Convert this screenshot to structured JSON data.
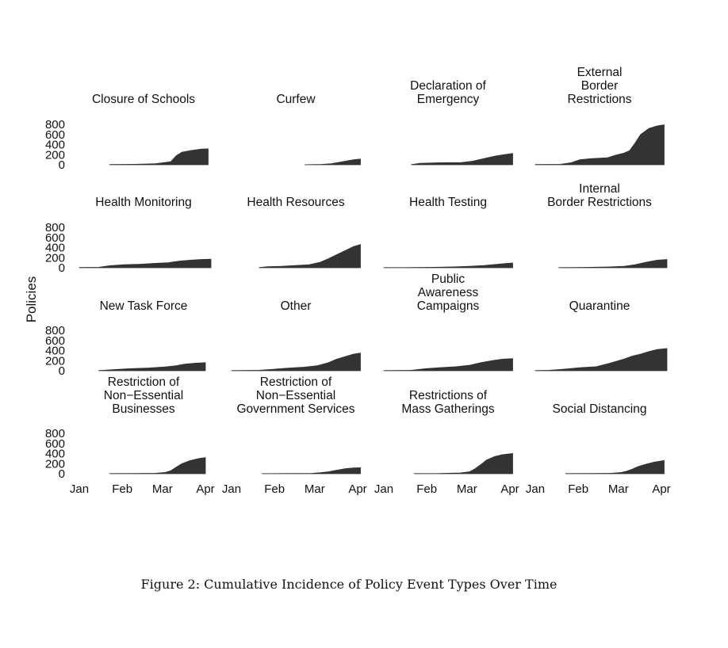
{
  "caption": "Figure 2: Cumulative Incidence of Policy Event Types Over Time",
  "chart_data": {
    "type": "area",
    "ylabel": "Policies",
    "ylim": [
      0,
      800
    ],
    "yticks": [
      0,
      200,
      400,
      600,
      800
    ],
    "x_ticks": [
      "Jan",
      "Feb",
      "Mar",
      "Apr"
    ],
    "x_tick_days": [
      0,
      31,
      60,
      91
    ],
    "x_domain_days": [
      0,
      95
    ],
    "fill_color": "#333333",
    "panels": [
      {
        "title": [
          "Closure of Schools"
        ],
        "start": 22,
        "values": [
          [
            22,
            5
          ],
          [
            40,
            10
          ],
          [
            55,
            20
          ],
          [
            66,
            60
          ],
          [
            70,
            180
          ],
          [
            74,
            250
          ],
          [
            80,
            280
          ],
          [
            88,
            310
          ],
          [
            93,
            315
          ]
        ]
      },
      {
        "title": [
          "Curfew"
        ],
        "start": 53,
        "values": [
          [
            53,
            2
          ],
          [
            65,
            8
          ],
          [
            72,
            20
          ],
          [
            80,
            60
          ],
          [
            88,
            100
          ],
          [
            93,
            115
          ]
        ]
      },
      {
        "title": [
          "Declaration of",
          "Emergency"
        ],
        "start": 20,
        "values": [
          [
            20,
            5
          ],
          [
            26,
            30
          ],
          [
            40,
            40
          ],
          [
            56,
            45
          ],
          [
            64,
            70
          ],
          [
            72,
            120
          ],
          [
            80,
            170
          ],
          [
            88,
            205
          ],
          [
            93,
            225
          ]
        ]
      },
      {
        "title": [
          "External",
          "Border",
          "Restrictions"
        ],
        "start": 0,
        "values": [
          [
            0,
            5
          ],
          [
            18,
            10
          ],
          [
            26,
            40
          ],
          [
            32,
            100
          ],
          [
            40,
            120
          ],
          [
            52,
            140
          ],
          [
            58,
            190
          ],
          [
            64,
            230
          ],
          [
            68,
            280
          ],
          [
            72,
            430
          ],
          [
            76,
            600
          ],
          [
            82,
            720
          ],
          [
            88,
            770
          ],
          [
            93,
            790
          ]
        ]
      },
      {
        "title": [
          "Health Monitoring"
        ],
        "start": 0,
        "values": [
          [
            0,
            5
          ],
          [
            14,
            10
          ],
          [
            22,
            40
          ],
          [
            32,
            60
          ],
          [
            44,
            70
          ],
          [
            56,
            90
          ],
          [
            64,
            100
          ],
          [
            72,
            130
          ],
          [
            80,
            150
          ],
          [
            88,
            165
          ],
          [
            95,
            170
          ]
        ]
      },
      {
        "title": [
          "Health Resources"
        ],
        "start": 20,
        "values": [
          [
            20,
            5
          ],
          [
            26,
            20
          ],
          [
            36,
            30
          ],
          [
            46,
            45
          ],
          [
            56,
            60
          ],
          [
            64,
            110
          ],
          [
            70,
            180
          ],
          [
            76,
            260
          ],
          [
            82,
            340
          ],
          [
            88,
            420
          ],
          [
            93,
            460
          ]
        ]
      },
      {
        "title": [
          "Health Testing"
        ],
        "start": 0,
        "values": [
          [
            0,
            3
          ],
          [
            20,
            5
          ],
          [
            36,
            10
          ],
          [
            50,
            18
          ],
          [
            62,
            30
          ],
          [
            72,
            45
          ],
          [
            80,
            65
          ],
          [
            88,
            85
          ],
          [
            93,
            95
          ]
        ]
      },
      {
        "title": [
          "Internal",
          "Border Restrictions"
        ],
        "start": 17,
        "values": [
          [
            17,
            3
          ],
          [
            36,
            8
          ],
          [
            52,
            15
          ],
          [
            64,
            30
          ],
          [
            72,
            60
          ],
          [
            80,
            110
          ],
          [
            88,
            150
          ],
          [
            95,
            165
          ]
        ]
      },
      {
        "title": [
          "New Task Force"
        ],
        "start": 14,
        "values": [
          [
            14,
            3
          ],
          [
            24,
            20
          ],
          [
            36,
            40
          ],
          [
            50,
            55
          ],
          [
            62,
            75
          ],
          [
            70,
            100
          ],
          [
            76,
            130
          ],
          [
            84,
            150
          ],
          [
            91,
            160
          ]
        ]
      },
      {
        "title": [
          "Other"
        ],
        "start": 0,
        "values": [
          [
            0,
            3
          ],
          [
            20,
            10
          ],
          [
            30,
            30
          ],
          [
            40,
            50
          ],
          [
            52,
            70
          ],
          [
            62,
            100
          ],
          [
            70,
            160
          ],
          [
            76,
            230
          ],
          [
            82,
            280
          ],
          [
            88,
            330
          ],
          [
            93,
            350
          ]
        ]
      },
      {
        "title": [
          "Public",
          "Awareness",
          "Campaigns"
        ],
        "start": 0,
        "values": [
          [
            0,
            3
          ],
          [
            20,
            10
          ],
          [
            30,
            40
          ],
          [
            40,
            60
          ],
          [
            52,
            80
          ],
          [
            62,
            110
          ],
          [
            70,
            160
          ],
          [
            78,
            200
          ],
          [
            86,
            230
          ],
          [
            93,
            240
          ]
        ]
      },
      {
        "title": [
          "Quarantine"
        ],
        "start": 0,
        "values": [
          [
            0,
            3
          ],
          [
            10,
            10
          ],
          [
            20,
            30
          ],
          [
            32,
            60
          ],
          [
            44,
            80
          ],
          [
            54,
            150
          ],
          [
            64,
            230
          ],
          [
            70,
            290
          ],
          [
            76,
            330
          ],
          [
            82,
            380
          ],
          [
            88,
            420
          ],
          [
            95,
            440
          ]
        ]
      },
      {
        "title": [
          "Restriction of",
          "Non−Essential",
          "Businesses"
        ],
        "start": 22,
        "values": [
          [
            22,
            3
          ],
          [
            40,
            5
          ],
          [
            55,
            10
          ],
          [
            62,
            25
          ],
          [
            66,
            60
          ],
          [
            70,
            130
          ],
          [
            74,
            200
          ],
          [
            80,
            260
          ],
          [
            86,
            300
          ],
          [
            91,
            320
          ]
        ]
      },
      {
        "title": [
          "Restriction of",
          "Non−Essential",
          "Government Services"
        ],
        "start": 22,
        "values": [
          [
            22,
            2
          ],
          [
            44,
            4
          ],
          [
            58,
            8
          ],
          [
            64,
            20
          ],
          [
            70,
            40
          ],
          [
            76,
            70
          ],
          [
            82,
            100
          ],
          [
            88,
            115
          ],
          [
            93,
            120
          ]
        ]
      },
      {
        "title": [
          "Restrictions of",
          "Mass Gatherings"
        ],
        "start": 22,
        "values": [
          [
            22,
            3
          ],
          [
            40,
            5
          ],
          [
            55,
            15
          ],
          [
            62,
            40
          ],
          [
            66,
            100
          ],
          [
            70,
            180
          ],
          [
            74,
            270
          ],
          [
            80,
            340
          ],
          [
            86,
            380
          ],
          [
            93,
            400
          ]
        ]
      },
      {
        "title": [
          "Social Distancing"
        ],
        "start": 22,
        "values": [
          [
            22,
            3
          ],
          [
            40,
            5
          ],
          [
            55,
            10
          ],
          [
            62,
            25
          ],
          [
            66,
            50
          ],
          [
            70,
            90
          ],
          [
            74,
            140
          ],
          [
            80,
            190
          ],
          [
            86,
            230
          ],
          [
            93,
            260
          ]
        ]
      }
    ]
  }
}
